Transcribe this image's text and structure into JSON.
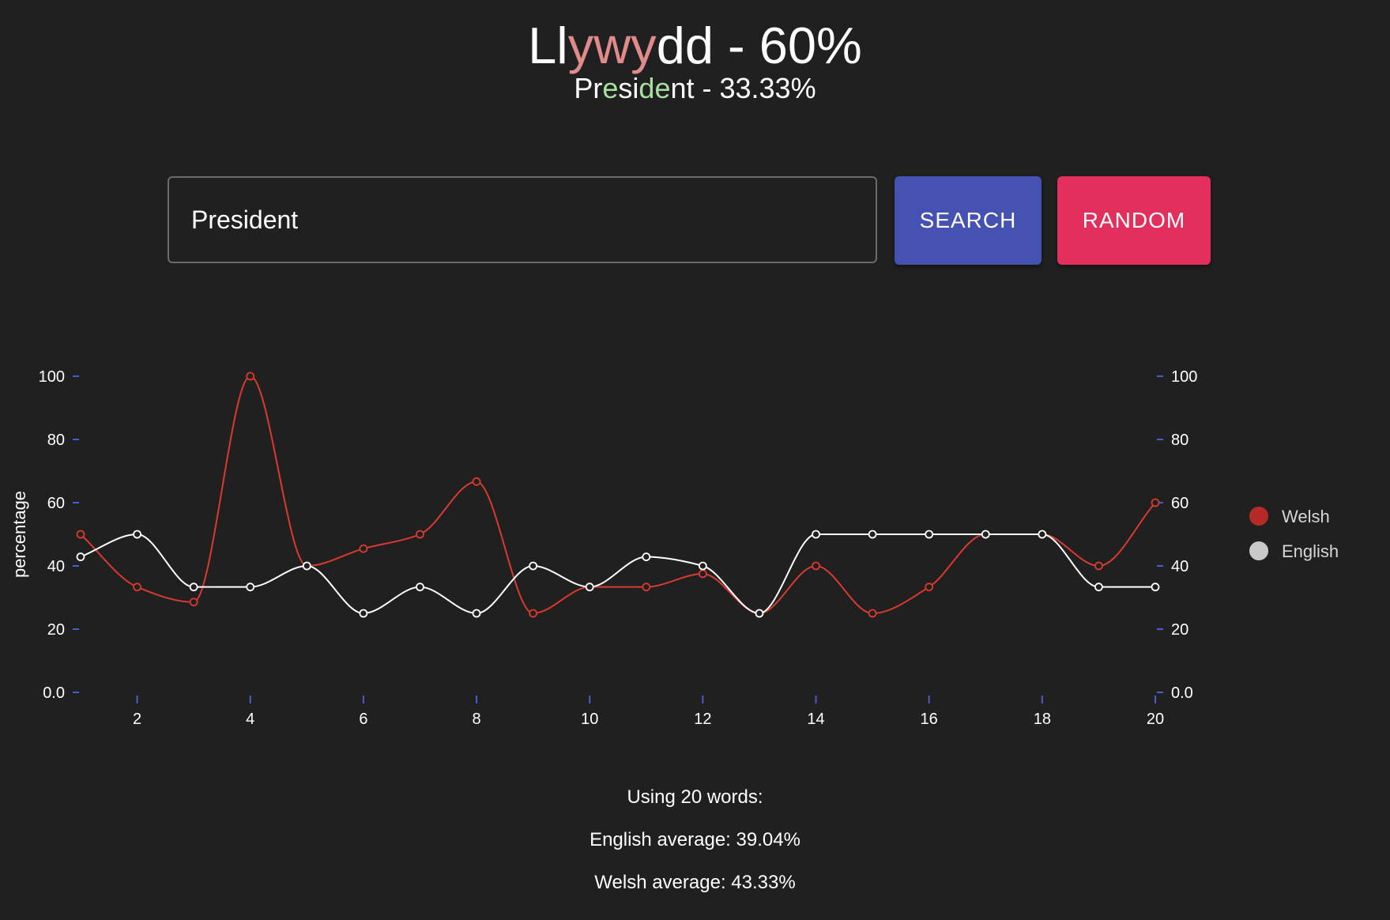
{
  "header": {
    "welsh_segments": [
      {
        "text": "Ll",
        "highlight": false
      },
      {
        "text": "ywy",
        "highlight": true
      },
      {
        "text": "dd - 60%",
        "highlight": false
      }
    ],
    "english_segments": [
      {
        "text": "Pr",
        "highlight": false
      },
      {
        "text": "e",
        "highlight": true
      },
      {
        "text": "si",
        "highlight": false
      },
      {
        "text": "de",
        "highlight": true
      },
      {
        "text": "nt - 33.33%",
        "highlight": false
      }
    ],
    "welsh_highlight_color": "#e08a8a",
    "english_highlight_color": "#a5e0a0"
  },
  "search": {
    "value": "President",
    "search_label": "SEARCH",
    "random_label": "RANDOM"
  },
  "colors": {
    "background": "#202020",
    "search_button": "#4552b1",
    "random_button": "#e22f5b",
    "tick_color": "#4b5bd6"
  },
  "chart_data": {
    "type": "line",
    "ylabel": "percentage",
    "xlim": [
      1,
      20
    ],
    "ylim": [
      0,
      100
    ],
    "x_ticks": [
      2,
      4,
      6,
      8,
      10,
      12,
      14,
      16,
      18,
      20
    ],
    "y_ticks": [
      {
        "value": 0,
        "label": "0.0"
      },
      {
        "value": 20,
        "label": "20"
      },
      {
        "value": 40,
        "label": "40"
      },
      {
        "value": 60,
        "label": "60"
      },
      {
        "value": 80,
        "label": "80"
      },
      {
        "value": 100,
        "label": "100"
      }
    ],
    "x": [
      1,
      2,
      3,
      4,
      5,
      6,
      7,
      8,
      9,
      10,
      11,
      12,
      13,
      14,
      15,
      16,
      17,
      18,
      19,
      20
    ],
    "series": [
      {
        "name": "Welsh",
        "color": "#d93a30",
        "legend_color": "#b52a24",
        "values": [
          50,
          33.33,
          28.57,
          100,
          40,
          45.45,
          50,
          66.67,
          25,
          33.33,
          33.33,
          37.5,
          25,
          40,
          25,
          33.33,
          50,
          50,
          40,
          60
        ]
      },
      {
        "name": "English",
        "color": "#ffffff",
        "legend_color": "#c9c9c9",
        "values": [
          42.86,
          50,
          33.33,
          33.33,
          40,
          25,
          33.33,
          25,
          40,
          33.33,
          42.86,
          40,
          25,
          50,
          50,
          50,
          50,
          50,
          33.33,
          33.33
        ]
      }
    ],
    "legend_position": "right"
  },
  "stats": {
    "word_count_text": "Using 20 words:",
    "english_average_text": "English average: 39.04%",
    "welsh_average_text": "Welsh average: 43.33%"
  }
}
